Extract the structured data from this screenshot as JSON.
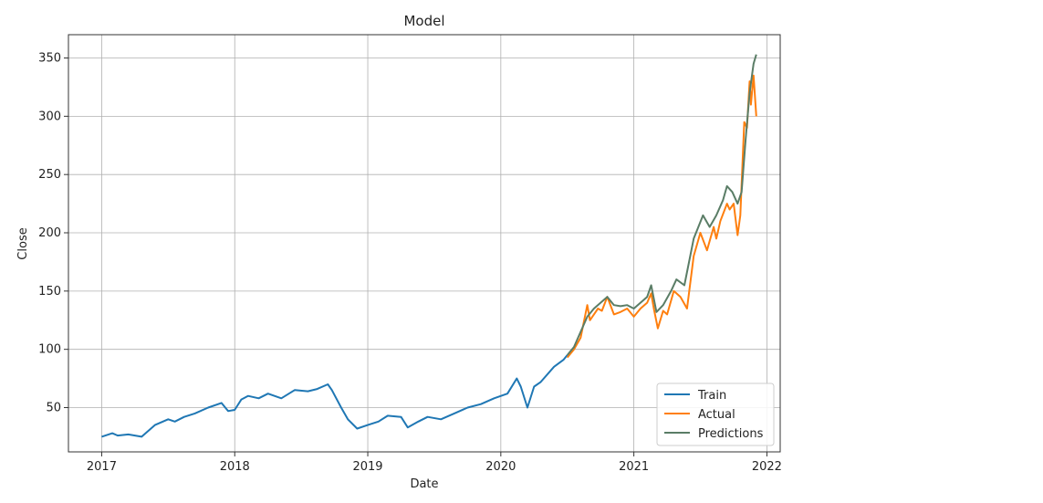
{
  "chart_data": {
    "type": "line",
    "title": "Model",
    "xlabel": "Date",
    "ylabel": "Close",
    "xlim": [
      2016.75,
      2022.1
    ],
    "ylim": [
      12,
      370
    ],
    "xticks": [
      2017,
      2018,
      2019,
      2020,
      2021,
      2022
    ],
    "xtick_labels": [
      "2017",
      "2018",
      "2019",
      "2020",
      "2021",
      "2022"
    ],
    "yticks": [
      50,
      100,
      150,
      200,
      250,
      300,
      350
    ],
    "ytick_labels": [
      "50",
      "100",
      "150",
      "200",
      "250",
      "300",
      "350"
    ],
    "grid": true,
    "legend_position": "lower-right",
    "series": [
      {
        "name": "Train",
        "color": "#1f77b4",
        "x": [
          2017.0,
          2017.08,
          2017.12,
          2017.2,
          2017.3,
          2017.4,
          2017.5,
          2017.55,
          2017.62,
          2017.7,
          2017.8,
          2017.9,
          2017.95,
          2018.0,
          2018.05,
          2018.1,
          2018.18,
          2018.25,
          2018.35,
          2018.45,
          2018.55,
          2018.62,
          2018.7,
          2018.73,
          2018.8,
          2018.85,
          2018.92,
          2019.0,
          2019.08,
          2019.15,
          2019.25,
          2019.3,
          2019.38,
          2019.45,
          2019.55,
          2019.65,
          2019.75,
          2019.85,
          2019.95,
          2020.05,
          2020.12,
          2020.15,
          2020.2,
          2020.25,
          2020.3,
          2020.4,
          2020.47,
          2020.5
        ],
        "y": [
          25,
          28,
          26,
          27,
          25,
          35,
          40,
          38,
          42,
          45,
          50,
          54,
          47,
          48,
          57,
          60,
          58,
          62,
          58,
          65,
          64,
          66,
          70,
          65,
          50,
          40,
          32,
          35,
          38,
          43,
          42,
          33,
          38,
          42,
          40,
          45,
          50,
          53,
          58,
          62,
          75,
          68,
          50,
          68,
          72,
          85,
          91,
          95
        ]
      },
      {
        "name": "Actual",
        "color": "#ff7f0e",
        "x": [
          2020.5,
          2020.55,
          2020.6,
          2020.65,
          2020.67,
          2020.7,
          2020.73,
          2020.76,
          2020.8,
          2020.85,
          2020.9,
          2020.95,
          2021.0,
          2021.05,
          2021.1,
          2021.13,
          2021.15,
          2021.18,
          2021.22,
          2021.25,
          2021.3,
          2021.35,
          2021.4,
          2021.45,
          2021.5,
          2021.55,
          2021.6,
          2021.62,
          2021.65,
          2021.7,
          2021.72,
          2021.75,
          2021.78,
          2021.8,
          2021.83,
          2021.85,
          2021.87,
          2021.88,
          2021.9,
          2021.92
        ],
        "y": [
          93,
          100,
          110,
          138,
          125,
          130,
          135,
          133,
          145,
          130,
          132,
          135,
          128,
          135,
          140,
          148,
          135,
          118,
          133,
          130,
          150,
          145,
          135,
          180,
          200,
          185,
          205,
          195,
          210,
          225,
          220,
          225,
          198,
          215,
          295,
          290,
          330,
          310,
          335,
          300
        ]
      },
      {
        "name": "Predictions",
        "color": "#5a7d66",
        "x": [
          2020.5,
          2020.55,
          2020.6,
          2020.65,
          2020.7,
          2020.75,
          2020.8,
          2020.85,
          2020.9,
          2020.95,
          2021.0,
          2021.05,
          2021.1,
          2021.13,
          2021.17,
          2021.22,
          2021.28,
          2021.32,
          2021.38,
          2021.45,
          2021.52,
          2021.57,
          2021.62,
          2021.67,
          2021.7,
          2021.74,
          2021.78,
          2021.81,
          2021.84,
          2021.87,
          2021.9,
          2021.92
        ],
        "y": [
          95,
          102,
          115,
          128,
          135,
          140,
          145,
          138,
          137,
          138,
          135,
          140,
          145,
          155,
          132,
          138,
          150,
          160,
          155,
          195,
          215,
          205,
          215,
          228,
          240,
          235,
          225,
          235,
          280,
          320,
          345,
          353
        ]
      }
    ]
  }
}
